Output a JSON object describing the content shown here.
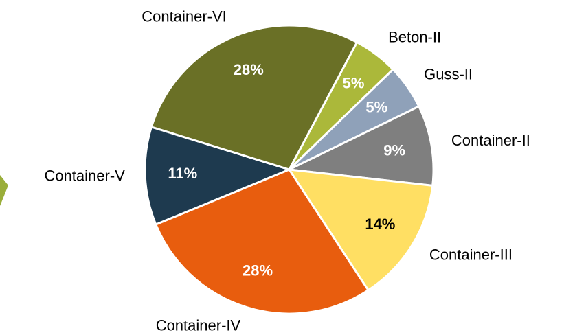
{
  "chart_data": {
    "type": "pie",
    "categories": [
      "Beton-II",
      "Guss-II",
      "Container-II",
      "Container-III",
      "Container-IV",
      "Container-V",
      "Container-VI"
    ],
    "values": [
      5,
      5,
      9,
      14,
      28,
      11,
      28
    ],
    "value_labels": [
      "5%",
      "5%",
      "9%",
      "14%",
      "28%",
      "11%",
      "28%"
    ],
    "colors": [
      "#abb83a",
      "#8fa1b9",
      "#7f7f7f",
      "#ffdf63",
      "#e85d0e",
      "#1e3a4f",
      "#6a7026"
    ]
  }
}
